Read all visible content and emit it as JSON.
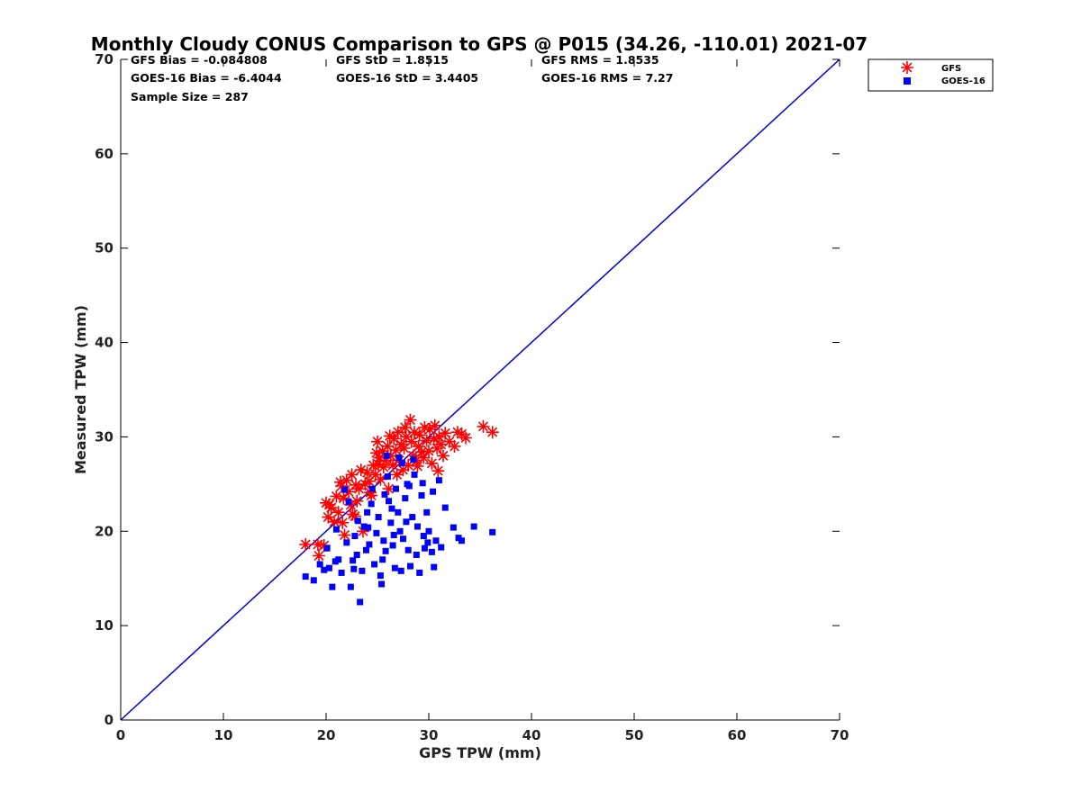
{
  "chart_data": {
    "type": "scatter",
    "title": "Monthly Cloudy CONUS Comparison to GPS @ P015 (34.26, -110.01) 2021-07",
    "xlabel": "GPS TPW (mm)",
    "ylabel": "Measured TPW (mm)",
    "xlim": [
      0,
      70
    ],
    "ylim": [
      0,
      70
    ],
    "xticks": [
      "0",
      "10",
      "20",
      "30",
      "40",
      "50",
      "60",
      "70"
    ],
    "yticks": [
      "0",
      "10",
      "20",
      "30",
      "40",
      "50",
      "60",
      "70"
    ],
    "grid": false,
    "legend_position": "top-right outside plot",
    "reference_line": {
      "x": [
        0,
        70
      ],
      "y": [
        0,
        70
      ],
      "color": "#0000dd"
    },
    "stats": [
      {
        "label": "GFS Bias = -0.084808"
      },
      {
        "label": "GFS StD = 1.8515"
      },
      {
        "label": "GFS RMS = 1.8535"
      },
      {
        "label": "GOES-16 Bias = -6.4044"
      },
      {
        "label": "GOES-16 StD = 3.4405"
      },
      {
        "label": "GOES-16 RMS = 7.27"
      },
      {
        "label": "Sample Size = 287"
      }
    ],
    "series": [
      {
        "name": "GFS",
        "marker": "asterisk",
        "color": "#ff0000",
        "points": [
          [
            18.0,
            18.6
          ],
          [
            19.2,
            18.6
          ],
          [
            19.3,
            17.4
          ],
          [
            19.8,
            18.5
          ],
          [
            20.2,
            21.5
          ],
          [
            20.0,
            23.0
          ],
          [
            20.5,
            22.5
          ],
          [
            20.8,
            21.0
          ],
          [
            21.0,
            23.7
          ],
          [
            21.2,
            22.0
          ],
          [
            21.5,
            24.8
          ],
          [
            21.7,
            23.5
          ],
          [
            21.8,
            19.6
          ],
          [
            22.0,
            25.4
          ],
          [
            22.2,
            24.2
          ],
          [
            22.4,
            22.8
          ],
          [
            22.6,
            21.8
          ],
          [
            22.8,
            21.6
          ],
          [
            23.0,
            23.2
          ],
          [
            23.2,
            24.5
          ],
          [
            23.4,
            26.5
          ],
          [
            23.6,
            20.0
          ],
          [
            23.8,
            25.0
          ],
          [
            24.0,
            26.2
          ],
          [
            24.2,
            25.3
          ],
          [
            24.4,
            23.8
          ],
          [
            24.6,
            27.0
          ],
          [
            24.8,
            26.0
          ],
          [
            25.0,
            29.5
          ],
          [
            25.2,
            27.8
          ],
          [
            25.3,
            25.5
          ],
          [
            25.5,
            28.5
          ],
          [
            25.6,
            26.8
          ],
          [
            25.8,
            27.5
          ],
          [
            26.0,
            29.0
          ],
          [
            26.1,
            24.5
          ],
          [
            26.3,
            28.0
          ],
          [
            26.5,
            27.0
          ],
          [
            26.6,
            29.8
          ],
          [
            26.8,
            28.6
          ],
          [
            27.0,
            30.5
          ],
          [
            27.1,
            27.5
          ],
          [
            27.3,
            29.2
          ],
          [
            27.5,
            26.5
          ],
          [
            27.6,
            28.8
          ],
          [
            27.8,
            30.0
          ],
          [
            28.0,
            27.0
          ],
          [
            28.2,
            31.8
          ],
          [
            28.3,
            29.5
          ],
          [
            28.5,
            28.0
          ],
          [
            28.6,
            30.5
          ],
          [
            28.8,
            27.5
          ],
          [
            29.0,
            29.0
          ],
          [
            29.1,
            30.2
          ],
          [
            29.3,
            28.4
          ],
          [
            29.5,
            27.8
          ],
          [
            29.6,
            31.0
          ],
          [
            29.8,
            29.6
          ],
          [
            30.0,
            28.5
          ],
          [
            30.1,
            30.8
          ],
          [
            30.3,
            27.2
          ],
          [
            30.5,
            29.8
          ],
          [
            30.6,
            31.2
          ],
          [
            30.8,
            28.8
          ],
          [
            31.0,
            30.0
          ],
          [
            31.2,
            29.2
          ],
          [
            31.4,
            28.0
          ],
          [
            31.6,
            30.4
          ],
          [
            32.0,
            29.5
          ],
          [
            32.5,
            29.0
          ],
          [
            32.8,
            30.5
          ],
          [
            33.2,
            30.3
          ],
          [
            33.6,
            29.9
          ],
          [
            35.3,
            31.1
          ],
          [
            36.2,
            30.5
          ],
          [
            21.4,
            25.2
          ],
          [
            22.5,
            26.0
          ],
          [
            24.9,
            28.3
          ],
          [
            26.2,
            30.1
          ],
          [
            27.7,
            31.0
          ],
          [
            20.3,
            22.8
          ],
          [
            22.9,
            24.9
          ],
          [
            25.1,
            27.1
          ],
          [
            28.9,
            26.9
          ],
          [
            30.9,
            26.4
          ],
          [
            26.9,
            26.0
          ],
          [
            24.3,
            24.1
          ],
          [
            21.6,
            20.9
          ]
        ]
      },
      {
        "name": "GOES-16",
        "marker": "square",
        "color": "#0000ff",
        "points": [
          [
            18.0,
            15.2
          ],
          [
            18.8,
            14.8
          ],
          [
            19.4,
            16.5
          ],
          [
            19.8,
            15.9
          ],
          [
            20.1,
            18.2
          ],
          [
            20.3,
            16.1
          ],
          [
            20.6,
            14.1
          ],
          [
            20.9,
            16.8
          ],
          [
            21.2,
            17.0
          ],
          [
            21.5,
            15.6
          ],
          [
            21.8,
            24.4
          ],
          [
            22.0,
            18.8
          ],
          [
            22.2,
            23.1
          ],
          [
            22.4,
            14.1
          ],
          [
            22.6,
            16.9
          ],
          [
            22.8,
            19.5
          ],
          [
            23.0,
            17.5
          ],
          [
            23.3,
            12.5
          ],
          [
            23.5,
            15.8
          ],
          [
            23.7,
            20.5
          ],
          [
            24.0,
            22.0
          ],
          [
            24.2,
            18.6
          ],
          [
            24.5,
            24.5
          ],
          [
            24.7,
            16.5
          ],
          [
            24.9,
            19.8
          ],
          [
            25.1,
            21.5
          ],
          [
            25.3,
            15.3
          ],
          [
            25.4,
            14.4
          ],
          [
            25.6,
            19.0
          ],
          [
            25.8,
            17.9
          ],
          [
            26.0,
            25.8
          ],
          [
            26.1,
            23.2
          ],
          [
            26.3,
            20.9
          ],
          [
            26.5,
            18.5
          ],
          [
            26.7,
            16.1
          ],
          [
            26.8,
            24.5
          ],
          [
            27.0,
            22.0
          ],
          [
            27.2,
            20.0
          ],
          [
            27.4,
            27.2
          ],
          [
            27.5,
            19.2
          ],
          [
            27.7,
            23.5
          ],
          [
            27.9,
            25.0
          ],
          [
            28.0,
            18.0
          ],
          [
            28.2,
            16.3
          ],
          [
            28.4,
            21.5
          ],
          [
            28.6,
            26.0
          ],
          [
            28.8,
            17.5
          ],
          [
            28.9,
            20.5
          ],
          [
            29.1,
            15.6
          ],
          [
            29.3,
            23.8
          ],
          [
            29.5,
            19.5
          ],
          [
            29.6,
            18.2
          ],
          [
            29.8,
            22.0
          ],
          [
            30.0,
            20.0
          ],
          [
            30.3,
            17.8
          ],
          [
            30.5,
            16.2
          ],
          [
            30.7,
            19.0
          ],
          [
            31.0,
            25.4
          ],
          [
            31.2,
            18.3
          ],
          [
            31.6,
            22.5
          ],
          [
            32.4,
            20.4
          ],
          [
            32.9,
            19.3
          ],
          [
            33.2,
            19.0
          ],
          [
            34.4,
            20.5
          ],
          [
            36.2,
            19.9
          ],
          [
            25.9,
            28.0
          ],
          [
            27.1,
            27.8
          ],
          [
            28.5,
            27.6
          ],
          [
            29.4,
            25.1
          ],
          [
            30.4,
            24.2
          ],
          [
            24.4,
            22.9
          ],
          [
            23.1,
            21.1
          ],
          [
            21.0,
            20.2
          ],
          [
            22.7,
            16.0
          ],
          [
            26.4,
            22.4
          ],
          [
            27.8,
            21.0
          ],
          [
            25.5,
            17.0
          ],
          [
            29.9,
            18.8
          ],
          [
            26.6,
            19.6
          ],
          [
            24.1,
            20.4
          ],
          [
            28.1,
            24.8
          ],
          [
            27.3,
            15.8
          ],
          [
            25.7,
            23.9
          ],
          [
            23.9,
            18.0
          ]
        ]
      }
    ]
  }
}
